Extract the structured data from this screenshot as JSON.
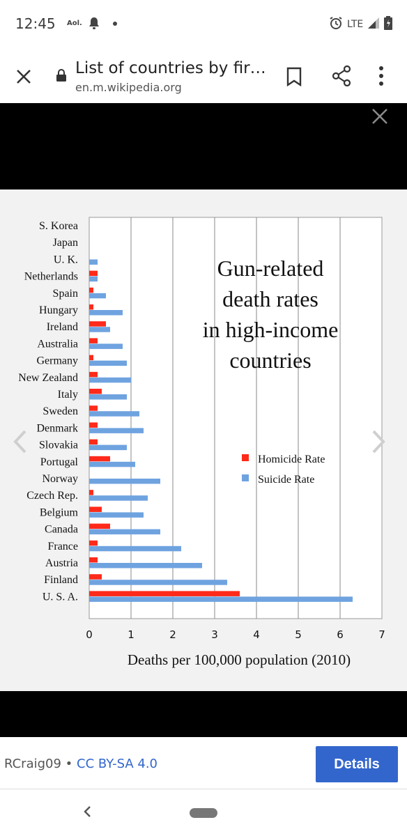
{
  "status": {
    "time": "12:45",
    "carrier_badge": "Aol.",
    "network": "LTE"
  },
  "appbar": {
    "title": "List of countries by fir…",
    "url": "en.m.wikipedia.org"
  },
  "footer": {
    "author": "RCraig09",
    "separator": " • ",
    "license": "CC BY-SA 4.0",
    "details_label": "Details"
  },
  "icons": {
    "close": "close-icon",
    "lock": "lock-icon",
    "bookmark": "bookmark-icon",
    "share": "share-icon",
    "more": "more-vert-icon",
    "back": "back-icon",
    "home": "home-pill-icon"
  },
  "colors": {
    "homicide": "#ff2a1a",
    "suicide": "#6fa3e0",
    "details_button": "#3366cc"
  },
  "chart_data": {
    "type": "bar",
    "orientation": "horizontal",
    "title_lines": [
      "Gun-related",
      "death rates",
      "in high-income",
      "countries"
    ],
    "xlabel": "Deaths per 100,000 population (2010)",
    "ylabel": "",
    "xlim": [
      0,
      7
    ],
    "xticks": [
      "0",
      "1",
      "2",
      "3",
      "4",
      "5",
      "6",
      "7"
    ],
    "grid": "vertical",
    "legend_position": "right-middle",
    "categories": [
      "S. Korea",
      "Japan",
      "U. K.",
      "Netherlands",
      "Spain",
      "Hungary",
      "Ireland",
      "Australia",
      "Germany",
      "New Zealand",
      "Italy",
      "Sweden",
      "Denmark",
      "Slovakia",
      "Portugal",
      "Norway",
      "Czech Rep.",
      "Belgium",
      "Canada",
      "France",
      "Austria",
      "Finland",
      "U. S. A."
    ],
    "series": [
      {
        "name": "Homicide Rate",
        "values": [
          0.0,
          0.0,
          0.0,
          0.2,
          0.1,
          0.1,
          0.4,
          0.2,
          0.1,
          0.2,
          0.3,
          0.2,
          0.2,
          0.2,
          0.5,
          0.0,
          0.1,
          0.3,
          0.5,
          0.2,
          0.2,
          0.3,
          3.6
        ]
      },
      {
        "name": "Suicide Rate",
        "values": [
          0.0,
          0.0,
          0.2,
          0.2,
          0.4,
          0.8,
          0.5,
          0.8,
          0.9,
          1.0,
          0.9,
          1.2,
          1.3,
          0.9,
          1.1,
          1.7,
          1.4,
          1.3,
          1.7,
          2.2,
          2.7,
          3.3,
          6.3
        ]
      }
    ]
  }
}
